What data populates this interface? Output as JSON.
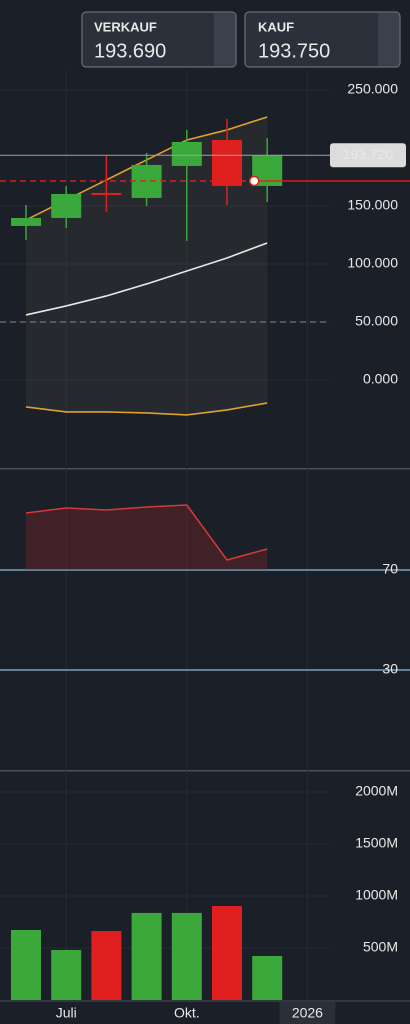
{
  "header": {
    "sell": {
      "label": "VERKAUF",
      "price": "193.690"
    },
    "buy": {
      "label": "KAUF",
      "price": "193.750"
    }
  },
  "chart_data": [
    {
      "type": "candlestick",
      "open": [
        132760,
        139650,
        161210,
        156900,
        184480,
        206900,
        167240
      ],
      "high": [
        150860,
        167240,
        193100,
        195690,
        215520,
        225000,
        208620
      ],
      "low": [
        120690,
        131030,
        144830,
        150000,
        119830,
        150860,
        153450
      ],
      "close": [
        139650,
        160340,
        159480,
        185340,
        205170,
        167240,
        193720
      ],
      "up_color": "#3aa83a",
      "down_color": "#e0201f",
      "series": [
        {
          "color": "#e0a030",
          "values": [
            137930,
            155170,
            172410,
            189660,
            206900,
            215520,
            226720
          ]
        },
        {
          "color": "#e6e6e6",
          "values": [
            56030,
            63790,
            72410,
            82760,
            93970,
            105170,
            118100
          ]
        },
        {
          "color": "#e0a030",
          "values": [
            -23280,
            -27590,
            -27590,
            -28450,
            -30170,
            -25860,
            -19830
          ]
        }
      ],
      "last_price": {
        "value": 193720,
        "label": "193.720"
      },
      "position_level": 171550,
      "position_color": "#e0201f",
      "dashed_level": 50000,
      "ylim": [
        -75900,
        267200
      ],
      "yticks": [
        {
          "value": 0,
          "label": "0.000"
        },
        {
          "value": 50000,
          "label": "50.000"
        },
        {
          "value": 100000,
          "label": "100.000"
        },
        {
          "value": 150000,
          "label": "150.000"
        },
        {
          "value": 250000,
          "label": "250.000"
        }
      ]
    },
    {
      "type": "line",
      "color": "#d83a3a",
      "values": [
        92.8,
        94.8,
        94,
        95.2,
        96,
        74,
        78.4
      ],
      "levels": [
        70,
        30
      ],
      "level_color": "#8fb8d8",
      "ylim": [
        -10,
        110
      ],
      "yticks": [
        30,
        70
      ]
    },
    {
      "type": "bar",
      "categories": [
        null,
        "Juli",
        null,
        null,
        "Okt.",
        null,
        null,
        "2026"
      ],
      "values": [
        673,
        481,
        663,
        837,
        837,
        904,
        423,
        null
      ],
      "colors": [
        "#3aa83a",
        "#3aa83a",
        "#e0201f",
        "#3aa83a",
        "#3aa83a",
        "#e0201f",
        "#3aa83a",
        null
      ],
      "ylim": [
        0,
        2192
      ],
      "yticks": [
        {
          "value": 500,
          "label": "500M"
        },
        {
          "value": 1000,
          "label": "1000M"
        },
        {
          "value": 1500,
          "label": "1500M"
        },
        {
          "value": 2000,
          "label": "2000M"
        }
      ]
    }
  ]
}
